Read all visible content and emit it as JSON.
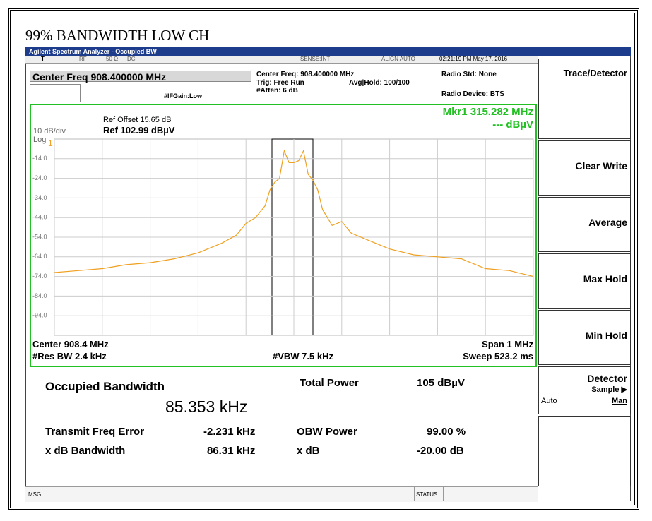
{
  "title": "99% BANDWIDTH LOW CH",
  "window": {
    "app_title": "Agilent Spectrum Analyzer - Occupied BW",
    "status": {
      "trig": "T",
      "rf": "RF",
      "impedance": "50 Ω",
      "coupling": "DC",
      "sense": "SENSE:INT",
      "align": "ALIGN AUTO",
      "datetime": "02:21:19 PM May 17, 2016"
    },
    "center_freq_box": "Center Freq 908.400000 MHz",
    "settings": {
      "center_freq": "Center Freq: 908.400000 MHz",
      "trig": "Trig: Free Run",
      "avg_hold": "Avg|Hold: 100/100",
      "atten": "#Atten: 6 dB",
      "if_gain": "#IFGain:Low",
      "radio_std": "Radio Std: None",
      "radio_device": "Radio Device: BTS"
    },
    "msg": "MSG",
    "status_label": "STATUS"
  },
  "plot_text": {
    "ref_offset": "Ref Offset 15.65 dB",
    "ref": "Ref 102.99 dBµV",
    "scale": "10 dB/div",
    "log": "Log",
    "trace_no": "1",
    "marker": "Mkr1 315.282 MHz",
    "marker_value": "--- dBµV",
    "center": "Center 908.4 MHz",
    "span": "Span 1 MHz",
    "res_bw": "#Res BW 2.4 kHz",
    "vbw": "#VBW 7.5 kHz",
    "sweep": "Sweep 523.2 ms"
  },
  "chart_data": {
    "type": "line",
    "color": "#f0a020",
    "grid": true,
    "x": [
      907.9,
      907.95,
      908.0,
      908.05,
      908.1,
      908.15,
      908.2,
      908.25,
      908.28,
      908.3,
      908.32,
      908.34,
      908.35,
      908.36,
      908.37,
      908.38,
      908.39,
      908.4,
      908.41,
      908.42,
      908.43,
      908.44,
      908.45,
      908.46,
      908.48,
      908.5,
      908.52,
      908.55,
      908.6,
      908.65,
      908.7,
      908.75,
      908.8,
      908.85,
      908.9
    ],
    "values": [
      -72,
      -71,
      -70,
      -68,
      -67,
      -65,
      -62,
      -57,
      -53,
      -47,
      -44,
      -38,
      -30,
      -26,
      -24,
      -10,
      -16,
      -16,
      -15,
      -10,
      -22,
      -25,
      -30,
      -40,
      -48,
      -46,
      -52,
      -55,
      -60,
      -63,
      -64,
      -65,
      -70,
      -71,
      -74
    ],
    "xlim": [
      907.9,
      908.9
    ],
    "xticks": [
      907.9,
      908.0,
      908.1,
      908.2,
      908.3,
      908.4,
      908.5,
      908.6,
      908.7,
      908.8,
      908.9
    ],
    "ylim": [
      -104,
      -4
    ],
    "yticks": [
      {
        "value": -14,
        "label": "-14.0"
      },
      {
        "value": -24,
        "label": "-24.0"
      },
      {
        "value": -34,
        "label": "-34.0"
      },
      {
        "value": -44,
        "label": "-44.0"
      },
      {
        "value": -54,
        "label": "-54.0"
      },
      {
        "value": -64,
        "label": "-64.0"
      },
      {
        "value": -74,
        "label": "-74.0"
      },
      {
        "value": -84,
        "label": "-84.0"
      },
      {
        "value": -94,
        "label": "-94.0"
      }
    ]
  },
  "results": {
    "obw_label": "Occupied Bandwidth",
    "obw_value": "85.353 kHz",
    "total_power_label": "Total Power",
    "total_power_value": "105 dBµV",
    "freq_error_label": "Transmit Freq Error",
    "freq_error_value": "-2.231 kHz",
    "obw_power_label": "OBW Power",
    "obw_power_value": "99.00 %",
    "xdb_bw_label": "x dB Bandwidth",
    "xdb_bw_value": "86.31 kHz",
    "xdb_label": "x dB",
    "xdb_value": "-20.00 dB"
  },
  "softkeys": {
    "menu": "Trace/Detector",
    "clear_write": "Clear Write",
    "average": "Average",
    "max_hold": "Max Hold",
    "min_hold": "Min Hold",
    "detector": "Detector",
    "sample": "Sample ▶",
    "auto": "Auto",
    "man": "Man"
  }
}
